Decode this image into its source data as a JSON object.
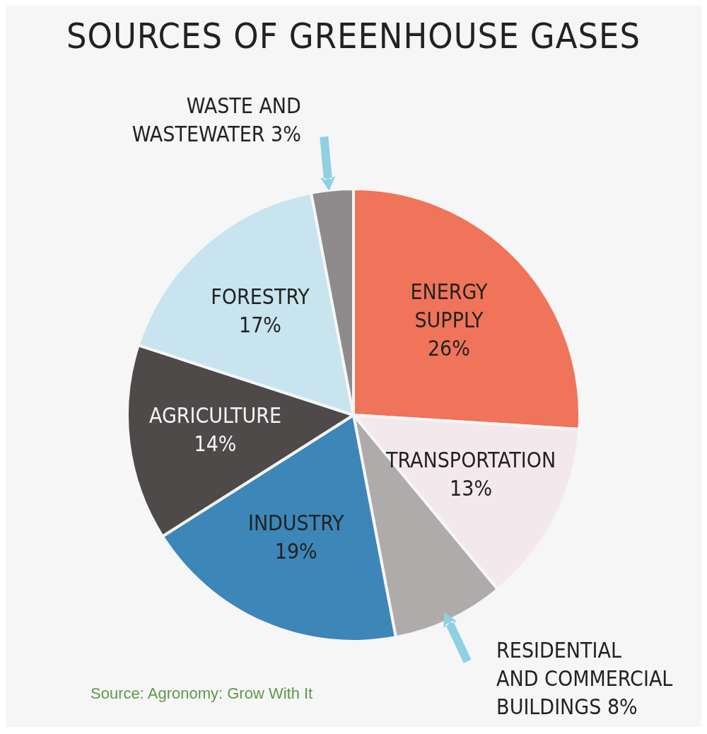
{
  "chart_data": {
    "type": "pie",
    "title": "SOURCES OF GREENHOUSE GASES",
    "categories": [
      "ENERGY SUPPLY",
      "TRANSPORTATION",
      "RESIDENTIAL AND COMMERCIAL BUILDINGS",
      "INDUSTRY",
      "AGRICULTURE",
      "FORESTRY",
      "WASTE AND WASTEWATER"
    ],
    "values": [
      26,
      13,
      8,
      19,
      14,
      17,
      3
    ],
    "value_labels": [
      "26%",
      "13%",
      "8%",
      "19%",
      "14%",
      "17%",
      "3%"
    ],
    "colors": [
      "#ef7459",
      "#f3e9ec",
      "#b0abab",
      "#3d86b8",
      "#4f4a4a",
      "#c8e4ee",
      "#8f8b8c"
    ],
    "legend": false,
    "annotations": [
      "Source: Agronomy: Grow With It"
    ]
  }
}
